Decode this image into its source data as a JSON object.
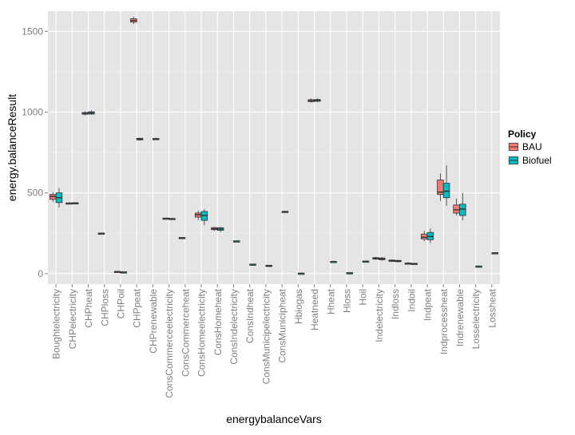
{
  "chart_data": {
    "type": "boxplot",
    "xlabel": "energybalanceVars",
    "ylabel": "energy.balanceResult",
    "ylim": [
      -65,
      1625
    ],
    "yticks": [
      0,
      500,
      1000,
      1500
    ],
    "legend": {
      "title": "Policy",
      "position": "right",
      "entries": [
        {
          "name": "BAU",
          "color": "#F8766D"
        },
        {
          "name": "Biofuel",
          "color": "#00BFC4"
        }
      ]
    },
    "colors": {
      "panel": "#E5E5E5",
      "grid": "#FFFFFF",
      "tick_text": "#7F7F7F",
      "BAU": "#F8766D",
      "Biofuel": "#00BFC4"
    },
    "categories": [
      "Boughtelectricity",
      "CHPelectricity",
      "CHPheat",
      "CHPloss",
      "CHPoil",
      "CHPpeat",
      "CHPrenewable",
      "ConsCommerceelectricity",
      "ConsCommerceheat",
      "ConsHomeelectricity",
      "ConsHomeheat",
      "ConsIndelectricity",
      "ConsIndheat",
      "ConsMunicipelectricity",
      "ConsMunicipheat",
      "Hbiogas",
      "Heatneed",
      "Hheat",
      "Hloss",
      "Hoil",
      "Indelectricity",
      "Indloss",
      "Indoil",
      "Indpeat",
      "Indprocessheat",
      "Indrenewable",
      "Losselectricity",
      "Lossheat"
    ],
    "series": [
      {
        "name": "BAU",
        "stats": [
          [
            445,
            460,
            478,
            490,
            505
          ],
          [
            430,
            433,
            436,
            438,
            440
          ],
          [
            980,
            987,
            992,
            998,
            1005
          ],
          [
            247,
            248,
            250,
            251,
            252
          ],
          [
            10,
            12,
            13,
            14,
            15
          ],
          [
            1545,
            1557,
            1567,
            1578,
            1590
          ],
          null,
          [
            338,
            340,
            342,
            344,
            346
          ],
          [
            219,
            220,
            222,
            224,
            226
          ],
          [
            330,
            350,
            365,
            375,
            390
          ],
          [
            265,
            272,
            278,
            285,
            290
          ],
          null,
          null,
          null,
          null,
          null,
          [
            1060,
            1065,
            1070,
            1077,
            1085
          ],
          null,
          null,
          null,
          [
            85,
            90,
            95,
            99,
            103
          ],
          [
            72,
            76,
            80,
            84,
            88
          ],
          [
            58,
            62,
            64,
            66,
            70
          ],
          [
            200,
            215,
            225,
            245,
            265
          ],
          [
            450,
            490,
            505,
            580,
            620
          ],
          [
            360,
            375,
            395,
            425,
            465
          ],
          null,
          null
        ]
      },
      {
        "name": "Biofuel",
        "stats": [
          [
            410,
            440,
            470,
            500,
            530
          ],
          [
            432,
            434,
            437,
            439,
            442
          ],
          [
            982,
            988,
            995,
            1002,
            1010
          ],
          null,
          [
            8,
            9,
            10,
            11,
            12
          ],
          [
            825,
            828,
            833,
            838,
            842
          ],
          [
            827,
            829,
            833,
            837,
            841
          ],
          [
            336,
            338,
            340,
            342,
            344
          ],
          null,
          [
            300,
            330,
            360,
            385,
            400
          ],
          [
            258,
            268,
            276,
            284,
            290
          ],
          [
            200,
            201,
            202,
            203,
            204
          ],
          [
            56,
            57,
            58,
            59,
            60
          ],
          [
            46,
            48,
            50,
            52,
            54
          ],
          [
            381,
            382,
            384,
            386,
            388
          ],
          [
            0,
            1,
            2,
            3,
            4
          ],
          [
            1062,
            1067,
            1073,
            1078,
            1085
          ],
          [
            73,
            74,
            75,
            76,
            77
          ],
          [
            3,
            4,
            5,
            6,
            7
          ],
          [
            75,
            76,
            77,
            78,
            79
          ],
          [
            80,
            86,
            92,
            97,
            102
          ],
          [
            70,
            74,
            78,
            82,
            86
          ],
          [
            56,
            60,
            62,
            64,
            67
          ],
          [
            190,
            210,
            230,
            255,
            280
          ],
          [
            420,
            470,
            510,
            560,
            670
          ],
          [
            330,
            360,
            400,
            430,
            500
          ],
          [
            44,
            45,
            46,
            47,
            48
          ],
          [
            124,
            126,
            128,
            130,
            132
          ]
        ]
      }
    ]
  }
}
